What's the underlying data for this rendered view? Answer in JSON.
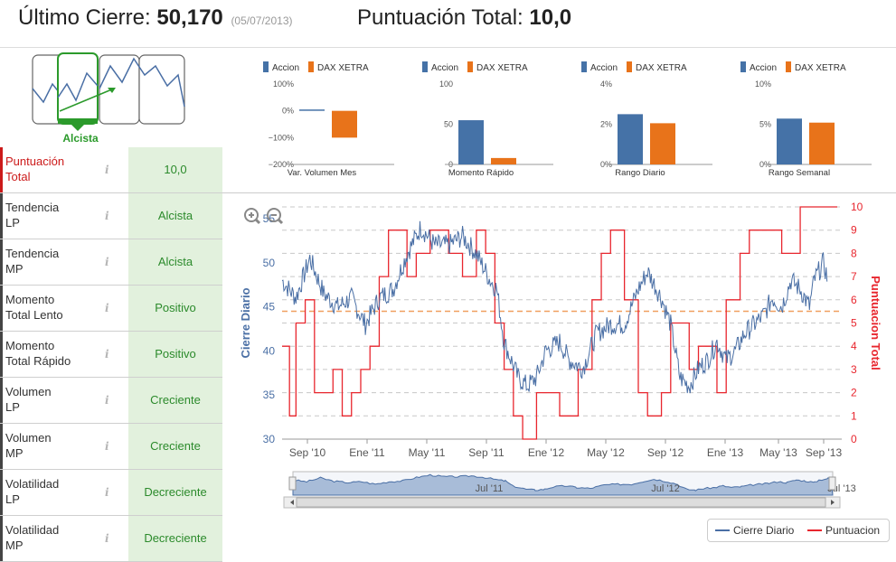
{
  "header": {
    "last_close_label": "Último Cierre:",
    "last_close_value": "50,170",
    "last_close_date": "(05/07/2013)",
    "total_score_label": "Puntuación Total:",
    "total_score_value": "10,0"
  },
  "trend": {
    "label": "Alcista"
  },
  "score_rows": [
    {
      "label1": "Puntuación",
      "label2": "Total",
      "value": "10,0",
      "highlight": true
    },
    {
      "label1": "Tendencia",
      "label2": "LP",
      "value": "Alcista"
    },
    {
      "label1": "Tendencia",
      "label2": "MP",
      "value": "Alcista"
    },
    {
      "label1": "Momento",
      "label2": "Total Lento",
      "value": "Positivo"
    },
    {
      "label1": "Momento",
      "label2": "Total Rápido",
      "value": "Positivo"
    },
    {
      "label1": "Volumen",
      "label2": "LP",
      "value": "Creciente"
    },
    {
      "label1": "Volumen",
      "label2": "MP",
      "value": "Creciente"
    },
    {
      "label1": "Volatilidad",
      "label2": "LP",
      "value": "Decreciente"
    },
    {
      "label1": "Volatilidad",
      "label2": "MP",
      "value": "Decreciente"
    }
  ],
  "colors": {
    "accion": "#4572a7",
    "dax": "#e8731a",
    "price": "#4a6fa5",
    "score": "#e8262e",
    "good_bg": "#e2f1dd",
    "good_text": "#2b8a2b"
  },
  "chart_data": [
    {
      "type": "bar",
      "legend": [
        "Accion",
        "DAX XETRA"
      ],
      "xlabel": "Var. Volumen Mes",
      "yticks": [
        "100%",
        "0%",
        "−100%",
        "−200%"
      ],
      "ylim": [
        -200,
        100
      ],
      "values": [
        5,
        -100
      ]
    },
    {
      "type": "bar",
      "legend": [
        "Accion",
        "DAX XETRA"
      ],
      "xlabel": "Momento Rápido",
      "yticks": [
        "100",
        "50",
        "0"
      ],
      "ylim": [
        0,
        100
      ],
      "values": [
        55,
        8
      ]
    },
    {
      "type": "bar",
      "legend": [
        "Accion",
        "DAX XETRA"
      ],
      "xlabel": "Rango Diario",
      "yticks": [
        "4%",
        "2%",
        "0%"
      ],
      "ylim": [
        0,
        4
      ],
      "values": [
        2.5,
        2.05
      ]
    },
    {
      "type": "bar",
      "legend": [
        "Accion",
        "DAX XETRA"
      ],
      "xlabel": "Rango Semanal",
      "yticks": [
        "10%",
        "5%",
        "0%"
      ],
      "ylim": [
        0,
        10
      ],
      "values": [
        5.7,
        5.2
      ]
    },
    {
      "type": "line",
      "ylabel_left": "Cierre Diario",
      "ylabel_right": "Puntuacion Total",
      "yticks_left": [
        "55",
        "50",
        "45",
        "40",
        "35",
        "30"
      ],
      "yticks_right": [
        "10",
        "9",
        "8",
        "7",
        "6",
        "5",
        "4",
        "3",
        "2",
        "1",
        "0"
      ],
      "xticks": [
        "Sep '10",
        "Ene '11",
        "May '11",
        "Sep '11",
        "Ene '12",
        "May '12",
        "Sep '12",
        "Ene '13",
        "May '13",
        "Sep '13"
      ],
      "navigator_labels": [
        "Jul '11",
        "Jul '12",
        "Jul '13"
      ],
      "legend": [
        "Cierre Diario",
        "Puntuacion"
      ],
      "ylim_left": [
        30,
        55
      ],
      "ylim_right": [
        0,
        10
      ],
      "reference_line_left": 44.5,
      "price_anchors": [
        [
          0,
          48
        ],
        [
          15,
          46
        ],
        [
          30,
          50.5
        ],
        [
          45,
          46.5
        ],
        [
          60,
          45
        ],
        [
          75,
          46
        ],
        [
          90,
          43
        ],
        [
          105,
          46
        ],
        [
          120,
          47
        ],
        [
          135,
          51
        ],
        [
          150,
          54
        ],
        [
          165,
          52
        ],
        [
          180,
          52
        ],
        [
          195,
          53
        ],
        [
          210,
          51
        ],
        [
          225,
          48
        ],
        [
          232,
          47
        ],
        [
          240,
          41
        ],
        [
          255,
          37
        ],
        [
          265,
          36
        ],
        [
          275,
          37
        ],
        [
          285,
          40
        ],
        [
          300,
          41
        ],
        [
          310,
          39
        ],
        [
          325,
          38
        ],
        [
          340,
          42
        ],
        [
          355,
          43
        ],
        [
          370,
          43
        ],
        [
          385,
          47
        ],
        [
          395,
          49
        ],
        [
          410,
          46
        ],
        [
          420,
          43
        ],
        [
          430,
          37
        ],
        [
          440,
          36
        ],
        [
          450,
          38
        ],
        [
          460,
          39
        ],
        [
          470,
          41
        ],
        [
          480,
          39
        ],
        [
          490,
          40
        ],
        [
          500,
          42
        ],
        [
          510,
          43
        ],
        [
          520,
          44
        ],
        [
          530,
          46
        ],
        [
          540,
          45
        ],
        [
          550,
          48
        ],
        [
          560,
          47
        ],
        [
          570,
          45
        ],
        [
          575,
          48
        ],
        [
          585,
          50
        ],
        [
          590,
          48
        ]
      ],
      "score_steps": [
        [
          0,
          4
        ],
        [
          8,
          1
        ],
        [
          15,
          5
        ],
        [
          25,
          6
        ],
        [
          35,
          2
        ],
        [
          50,
          2
        ],
        [
          55,
          3
        ],
        [
          65,
          1
        ],
        [
          75,
          2
        ],
        [
          85,
          3
        ],
        [
          95,
          4
        ],
        [
          105,
          7
        ],
        [
          115,
          9
        ],
        [
          135,
          7
        ],
        [
          145,
          8
        ],
        [
          160,
          9
        ],
        [
          180,
          8
        ],
        [
          195,
          7
        ],
        [
          210,
          9
        ],
        [
          220,
          8
        ],
        [
          230,
          5
        ],
        [
          240,
          3
        ],
        [
          250,
          1
        ],
        [
          260,
          0
        ],
        [
          270,
          0
        ],
        [
          275,
          2
        ],
        [
          285,
          2
        ],
        [
          300,
          1
        ],
        [
          320,
          3
        ],
        [
          335,
          6
        ],
        [
          345,
          8
        ],
        [
          355,
          9
        ],
        [
          370,
          6
        ],
        [
          385,
          2
        ],
        [
          395,
          1
        ],
        [
          410,
          2
        ],
        [
          420,
          5
        ],
        [
          440,
          3
        ],
        [
          450,
          4
        ],
        [
          460,
          4
        ],
        [
          470,
          2
        ],
        [
          480,
          6
        ],
        [
          495,
          8
        ],
        [
          505,
          9
        ],
        [
          530,
          9
        ],
        [
          540,
          8
        ],
        [
          560,
          10
        ],
        [
          600,
          10
        ]
      ]
    }
  ]
}
